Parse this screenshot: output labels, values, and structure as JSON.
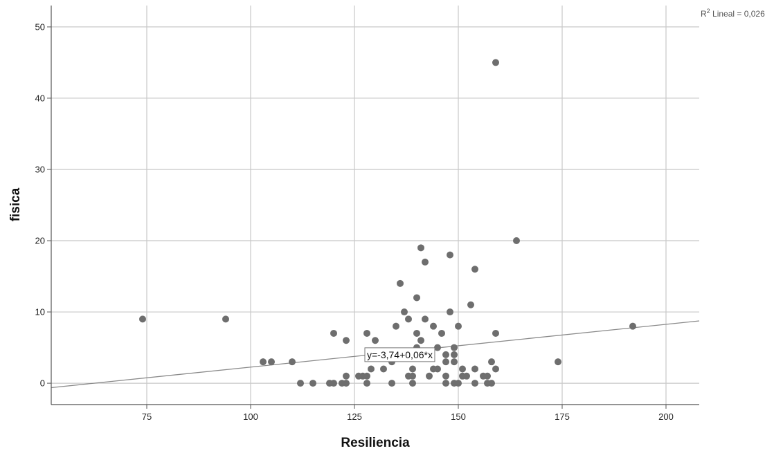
{
  "chart_data": {
    "type": "scatter",
    "xlabel": "Resiliencia",
    "ylabel": "fisica",
    "xlim": [
      52,
      208
    ],
    "ylim": [
      -3,
      53
    ],
    "x_ticks": [
      75,
      100,
      125,
      150,
      175,
      200
    ],
    "y_ticks": [
      0,
      10,
      20,
      30,
      40,
      50
    ],
    "x_tick_labels": [
      "75",
      "100",
      "125",
      "150",
      "175",
      "200"
    ],
    "y_tick_labels": [
      "0",
      "10",
      "20",
      "30",
      "40",
      "50"
    ],
    "grid": true,
    "r2_label": "R",
    "r2_sup": "2",
    "r2_text": " Lineal = 0,026",
    "fit_equation": "y=-3,74+0,06*x",
    "fit_line": {
      "intercept": -3.74,
      "slope": 0.06
    },
    "fit_label_at": {
      "x": 128,
      "y": 4
    },
    "colors": {
      "point": "#6e6e6e",
      "grid": "#c8c8c8",
      "fit": "#8a8a8a",
      "axis": "#555555"
    },
    "points": [
      {
        "x": 74,
        "y": 9
      },
      {
        "x": 94,
        "y": 9
      },
      {
        "x": 103,
        "y": 3
      },
      {
        "x": 105,
        "y": 3
      },
      {
        "x": 110,
        "y": 3
      },
      {
        "x": 112,
        "y": 0
      },
      {
        "x": 115,
        "y": 0
      },
      {
        "x": 119,
        "y": 0
      },
      {
        "x": 120,
        "y": 0
      },
      {
        "x": 120,
        "y": 7
      },
      {
        "x": 122,
        "y": 0
      },
      {
        "x": 123,
        "y": 0
      },
      {
        "x": 123,
        "y": 1
      },
      {
        "x": 123,
        "y": 6
      },
      {
        "x": 126,
        "y": 1
      },
      {
        "x": 127,
        "y": 1
      },
      {
        "x": 128,
        "y": 0
      },
      {
        "x": 128,
        "y": 1
      },
      {
        "x": 128,
        "y": 7
      },
      {
        "x": 129,
        "y": 2
      },
      {
        "x": 130,
        "y": 6
      },
      {
        "x": 132,
        "y": 2
      },
      {
        "x": 134,
        "y": 0
      },
      {
        "x": 134,
        "y": 3
      },
      {
        "x": 135,
        "y": 8
      },
      {
        "x": 136,
        "y": 14
      },
      {
        "x": 137,
        "y": 10
      },
      {
        "x": 138,
        "y": 1
      },
      {
        "x": 138,
        "y": 9
      },
      {
        "x": 139,
        "y": 0
      },
      {
        "x": 139,
        "y": 1
      },
      {
        "x": 139,
        "y": 2
      },
      {
        "x": 140,
        "y": 5
      },
      {
        "x": 140,
        "y": 7
      },
      {
        "x": 140,
        "y": 12
      },
      {
        "x": 141,
        "y": 6
      },
      {
        "x": 141,
        "y": 19
      },
      {
        "x": 142,
        "y": 4
      },
      {
        "x": 142,
        "y": 9
      },
      {
        "x": 142,
        "y": 17
      },
      {
        "x": 143,
        "y": 1
      },
      {
        "x": 144,
        "y": 2
      },
      {
        "x": 144,
        "y": 8
      },
      {
        "x": 145,
        "y": 2
      },
      {
        "x": 145,
        "y": 5
      },
      {
        "x": 146,
        "y": 7
      },
      {
        "x": 147,
        "y": 0
      },
      {
        "x": 147,
        "y": 1
      },
      {
        "x": 147,
        "y": 3
      },
      {
        "x": 147,
        "y": 4
      },
      {
        "x": 148,
        "y": 10
      },
      {
        "x": 148,
        "y": 18
      },
      {
        "x": 149,
        "y": 0
      },
      {
        "x": 149,
        "y": 3
      },
      {
        "x": 149,
        "y": 4
      },
      {
        "x": 149,
        "y": 5
      },
      {
        "x": 150,
        "y": 0
      },
      {
        "x": 150,
        "y": 8
      },
      {
        "x": 151,
        "y": 1
      },
      {
        "x": 151,
        "y": 2
      },
      {
        "x": 152,
        "y": 1
      },
      {
        "x": 153,
        "y": 11
      },
      {
        "x": 154,
        "y": 0
      },
      {
        "x": 154,
        "y": 2
      },
      {
        "x": 154,
        "y": 16
      },
      {
        "x": 156,
        "y": 1
      },
      {
        "x": 157,
        "y": 0
      },
      {
        "x": 157,
        "y": 1
      },
      {
        "x": 158,
        "y": 0
      },
      {
        "x": 158,
        "y": 3
      },
      {
        "x": 159,
        "y": 2
      },
      {
        "x": 159,
        "y": 7
      },
      {
        "x": 159,
        "y": 45
      },
      {
        "x": 164,
        "y": 20
      },
      {
        "x": 174,
        "y": 3
      },
      {
        "x": 192,
        "y": 8
      }
    ]
  }
}
